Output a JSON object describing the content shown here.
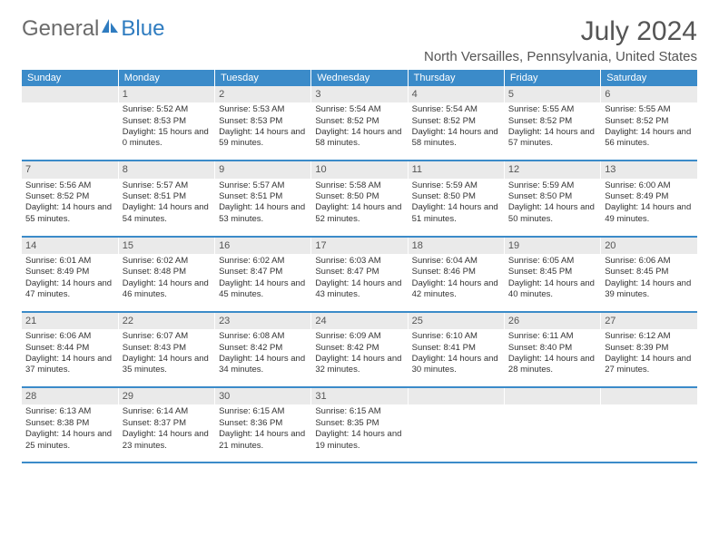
{
  "logo": {
    "text_gray": "General",
    "text_blue": "Blue"
  },
  "title": "July 2024",
  "location": "North Versailles, Pennsylvania, United States",
  "colors": {
    "header_bg": "#3b8bc9",
    "header_text": "#ffffff",
    "daynum_bg": "#eaeaea",
    "border": "#3b8bc9",
    "body_text": "#333333",
    "title_text": "#555555"
  },
  "day_headers": [
    "Sunday",
    "Monday",
    "Tuesday",
    "Wednesday",
    "Thursday",
    "Friday",
    "Saturday"
  ],
  "weeks": [
    {
      "nums": [
        "",
        "1",
        "2",
        "3",
        "4",
        "5",
        "6"
      ],
      "cells": [
        null,
        {
          "sr": "Sunrise: 5:52 AM",
          "ss": "Sunset: 8:53 PM",
          "dl": "Daylight: 15 hours and 0 minutes."
        },
        {
          "sr": "Sunrise: 5:53 AM",
          "ss": "Sunset: 8:53 PM",
          "dl": "Daylight: 14 hours and 59 minutes."
        },
        {
          "sr": "Sunrise: 5:54 AM",
          "ss": "Sunset: 8:52 PM",
          "dl": "Daylight: 14 hours and 58 minutes."
        },
        {
          "sr": "Sunrise: 5:54 AM",
          "ss": "Sunset: 8:52 PM",
          "dl": "Daylight: 14 hours and 58 minutes."
        },
        {
          "sr": "Sunrise: 5:55 AM",
          "ss": "Sunset: 8:52 PM",
          "dl": "Daylight: 14 hours and 57 minutes."
        },
        {
          "sr": "Sunrise: 5:55 AM",
          "ss": "Sunset: 8:52 PM",
          "dl": "Daylight: 14 hours and 56 minutes."
        }
      ]
    },
    {
      "nums": [
        "7",
        "8",
        "9",
        "10",
        "11",
        "12",
        "13"
      ],
      "cells": [
        {
          "sr": "Sunrise: 5:56 AM",
          "ss": "Sunset: 8:52 PM",
          "dl": "Daylight: 14 hours and 55 minutes."
        },
        {
          "sr": "Sunrise: 5:57 AM",
          "ss": "Sunset: 8:51 PM",
          "dl": "Daylight: 14 hours and 54 minutes."
        },
        {
          "sr": "Sunrise: 5:57 AM",
          "ss": "Sunset: 8:51 PM",
          "dl": "Daylight: 14 hours and 53 minutes."
        },
        {
          "sr": "Sunrise: 5:58 AM",
          "ss": "Sunset: 8:50 PM",
          "dl": "Daylight: 14 hours and 52 minutes."
        },
        {
          "sr": "Sunrise: 5:59 AM",
          "ss": "Sunset: 8:50 PM",
          "dl": "Daylight: 14 hours and 51 minutes."
        },
        {
          "sr": "Sunrise: 5:59 AM",
          "ss": "Sunset: 8:50 PM",
          "dl": "Daylight: 14 hours and 50 minutes."
        },
        {
          "sr": "Sunrise: 6:00 AM",
          "ss": "Sunset: 8:49 PM",
          "dl": "Daylight: 14 hours and 49 minutes."
        }
      ]
    },
    {
      "nums": [
        "14",
        "15",
        "16",
        "17",
        "18",
        "19",
        "20"
      ],
      "cells": [
        {
          "sr": "Sunrise: 6:01 AM",
          "ss": "Sunset: 8:49 PM",
          "dl": "Daylight: 14 hours and 47 minutes."
        },
        {
          "sr": "Sunrise: 6:02 AM",
          "ss": "Sunset: 8:48 PM",
          "dl": "Daylight: 14 hours and 46 minutes."
        },
        {
          "sr": "Sunrise: 6:02 AM",
          "ss": "Sunset: 8:47 PM",
          "dl": "Daylight: 14 hours and 45 minutes."
        },
        {
          "sr": "Sunrise: 6:03 AM",
          "ss": "Sunset: 8:47 PM",
          "dl": "Daylight: 14 hours and 43 minutes."
        },
        {
          "sr": "Sunrise: 6:04 AM",
          "ss": "Sunset: 8:46 PM",
          "dl": "Daylight: 14 hours and 42 minutes."
        },
        {
          "sr": "Sunrise: 6:05 AM",
          "ss": "Sunset: 8:45 PM",
          "dl": "Daylight: 14 hours and 40 minutes."
        },
        {
          "sr": "Sunrise: 6:06 AM",
          "ss": "Sunset: 8:45 PM",
          "dl": "Daylight: 14 hours and 39 minutes."
        }
      ]
    },
    {
      "nums": [
        "21",
        "22",
        "23",
        "24",
        "25",
        "26",
        "27"
      ],
      "cells": [
        {
          "sr": "Sunrise: 6:06 AM",
          "ss": "Sunset: 8:44 PM",
          "dl": "Daylight: 14 hours and 37 minutes."
        },
        {
          "sr": "Sunrise: 6:07 AM",
          "ss": "Sunset: 8:43 PM",
          "dl": "Daylight: 14 hours and 35 minutes."
        },
        {
          "sr": "Sunrise: 6:08 AM",
          "ss": "Sunset: 8:42 PM",
          "dl": "Daylight: 14 hours and 34 minutes."
        },
        {
          "sr": "Sunrise: 6:09 AM",
          "ss": "Sunset: 8:42 PM",
          "dl": "Daylight: 14 hours and 32 minutes."
        },
        {
          "sr": "Sunrise: 6:10 AM",
          "ss": "Sunset: 8:41 PM",
          "dl": "Daylight: 14 hours and 30 minutes."
        },
        {
          "sr": "Sunrise: 6:11 AM",
          "ss": "Sunset: 8:40 PM",
          "dl": "Daylight: 14 hours and 28 minutes."
        },
        {
          "sr": "Sunrise: 6:12 AM",
          "ss": "Sunset: 8:39 PM",
          "dl": "Daylight: 14 hours and 27 minutes."
        }
      ]
    },
    {
      "nums": [
        "28",
        "29",
        "30",
        "31",
        "",
        "",
        ""
      ],
      "cells": [
        {
          "sr": "Sunrise: 6:13 AM",
          "ss": "Sunset: 8:38 PM",
          "dl": "Daylight: 14 hours and 25 minutes."
        },
        {
          "sr": "Sunrise: 6:14 AM",
          "ss": "Sunset: 8:37 PM",
          "dl": "Daylight: 14 hours and 23 minutes."
        },
        {
          "sr": "Sunrise: 6:15 AM",
          "ss": "Sunset: 8:36 PM",
          "dl": "Daylight: 14 hours and 21 minutes."
        },
        {
          "sr": "Sunrise: 6:15 AM",
          "ss": "Sunset: 8:35 PM",
          "dl": "Daylight: 14 hours and 19 minutes."
        },
        null,
        null,
        null
      ]
    }
  ]
}
